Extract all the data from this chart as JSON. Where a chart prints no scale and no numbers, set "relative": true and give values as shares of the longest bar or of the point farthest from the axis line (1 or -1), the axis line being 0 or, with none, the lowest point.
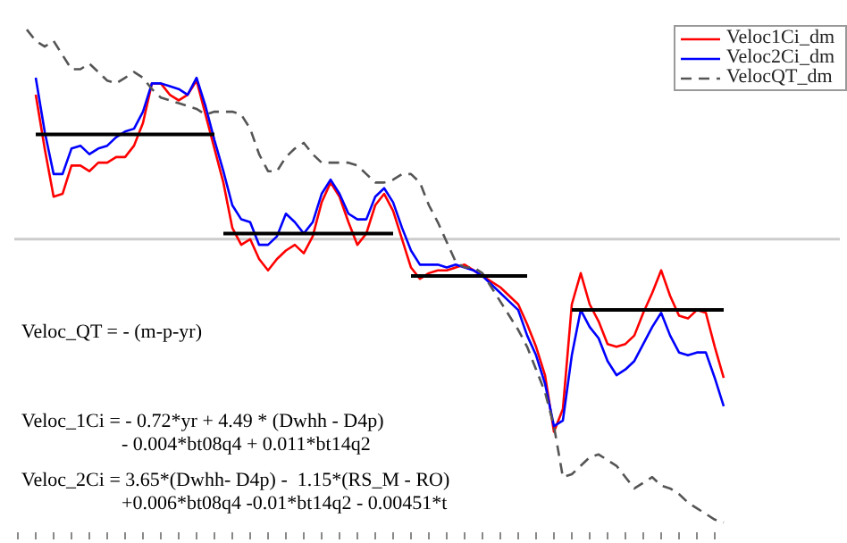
{
  "chart_data": {
    "type": "line",
    "relative": true,
    "legend": "top right",
    "grid": false,
    "categories": [
      null,
      null,
      null,
      null,
      null,
      null,
      null,
      null,
      null,
      null,
      null,
      null,
      null,
      null,
      null,
      null,
      null,
      null,
      null,
      null,
      null,
      null,
      null,
      null,
      null,
      null,
      null,
      null,
      null,
      null,
      null,
      null,
      null,
      null,
      null,
      null,
      null,
      null,
      null,
      null,
      null,
      null,
      null,
      null,
      null,
      null,
      null,
      null,
      null,
      null,
      null,
      null,
      null,
      null,
      null,
      null,
      null,
      null,
      null,
      null,
      null,
      null,
      null,
      null,
      null,
      null,
      null,
      null,
      null,
      null,
      null,
      null,
      null,
      null,
      null,
      null,
      null,
      null,
      null,
      null
    ],
    "series": [
      {
        "name": "Veloc1Ci_dm",
        "color": "#ff0000",
        "line_style": "solid",
        "values": [
          null,
          null,
          0.51,
          0.32,
          0.15,
          0.16,
          0.26,
          0.26,
          0.24,
          0.27,
          0.27,
          0.29,
          0.29,
          0.33,
          0.41,
          0.55,
          0.55,
          0.51,
          0.49,
          0.51,
          0.56,
          0.44,
          0.32,
          0.2,
          0.04,
          -0.02,
          0,
          -0.07,
          -0.11,
          -0.07,
          -0.04,
          -0.02,
          -0.05,
          0.01,
          0.13,
          0.2,
          0.15,
          0.06,
          -0.02,
          0.02,
          0.12,
          0.16,
          0.1,
          0,
          -0.1,
          -0.14,
          -0.12,
          -0.11,
          -0.11,
          -0.1,
          -0.09,
          -0.11,
          -0.13,
          -0.15,
          -0.17,
          -0.2,
          -0.23,
          -0.3,
          -0.38,
          -0.48,
          -0.68,
          -0.6,
          -0.23,
          -0.12,
          -0.23,
          -0.29,
          -0.37,
          -0.38,
          -0.37,
          -0.34,
          -0.26,
          -0.19,
          -0.11,
          -0.2,
          -0.27,
          -0.28,
          -0.25,
          -0.26,
          -0.38,
          -0.49
        ]
      },
      {
        "name": "Veloc2Ci_dm",
        "color": "#0000ff",
        "line_style": "solid",
        "values": [
          null,
          null,
          0.57,
          0.38,
          0.23,
          0.23,
          0.32,
          0.33,
          0.3,
          0.32,
          0.33,
          0.36,
          0.38,
          0.39,
          0.45,
          0.55,
          0.55,
          0.54,
          0.53,
          0.51,
          0.57,
          0.47,
          0.35,
          0.24,
          0.12,
          0.07,
          0.06,
          -0.02,
          -0.02,
          0.01,
          0.09,
          0.06,
          0.02,
          0.06,
          0.16,
          0.21,
          0.16,
          0.09,
          0.07,
          0.07,
          0.15,
          0.18,
          0.13,
          0.04,
          -0.04,
          -0.09,
          -0.09,
          -0.09,
          -0.1,
          -0.09,
          -0.1,
          -0.11,
          -0.13,
          -0.16,
          -0.19,
          -0.22,
          -0.25,
          -0.34,
          -0.41,
          -0.51,
          -0.66,
          -0.64,
          -0.41,
          -0.25,
          -0.31,
          -0.35,
          -0.43,
          -0.48,
          -0.46,
          -0.43,
          -0.37,
          -0.31,
          -0.26,
          -0.34,
          -0.4,
          -0.41,
          -0.4,
          -0.4,
          -0.49,
          -0.59
        ]
      },
      {
        "name": "VelocQT_dm",
        "color": "#555555",
        "line_style": "dashed",
        "values": [
          null,
          0.74,
          0.7,
          0.68,
          0.7,
          0.65,
          0.6,
          0.6,
          0.62,
          0.59,
          0.56,
          0.55,
          0.57,
          0.59,
          0.57,
          0.53,
          0.5,
          0.49,
          0.48,
          0.47,
          0.46,
          0.44,
          0.45,
          0.45,
          0.45,
          0.44,
          0.39,
          0.3,
          0.24,
          0.24,
          0.29,
          0.32,
          0.34,
          0.3,
          0.27,
          0.27,
          0.27,
          0.27,
          0.26,
          0.23,
          0.2,
          0.2,
          0.21,
          0.23,
          0.23,
          0.2,
          0.12,
          0.06,
          -0.01,
          -0.08,
          -0.1,
          -0.1,
          -0.12,
          -0.17,
          -0.22,
          -0.27,
          -0.32,
          -0.38,
          -0.46,
          -0.54,
          -0.66,
          -0.84,
          -0.83,
          -0.8,
          -0.77,
          -0.76,
          -0.78,
          -0.8,
          -0.84,
          -0.88,
          -0.86,
          -0.84,
          -0.87,
          -0.88,
          -0.9,
          -0.93,
          -0.95,
          -0.97,
          -0.99,
          -1
        ]
      },
      {
        "color": "#000000",
        "line_style": "solid",
        "values": [
          null,
          null,
          0.37,
          null,
          null,
          null,
          null,
          null,
          null,
          null,
          null,
          null,
          null,
          null,
          null,
          null,
          null,
          null,
          null,
          null,
          null,
          null,
          0.37,
          null,
          null,
          null,
          null,
          null,
          null,
          null,
          null,
          null,
          null,
          null,
          null,
          null,
          null,
          null,
          null,
          null,
          null,
          null,
          null,
          null,
          null,
          null,
          null,
          null,
          null,
          null,
          null,
          null,
          null,
          null,
          null,
          null,
          null,
          null,
          null,
          null,
          null,
          null,
          null,
          null,
          null,
          null,
          null,
          null,
          null,
          null,
          null,
          null,
          null,
          null,
          null,
          null,
          null,
          null,
          null,
          null
        ]
      },
      {
        "color": "#000000",
        "line_style": "solid",
        "values": [
          null,
          null,
          null,
          null,
          null,
          null,
          null,
          null,
          null,
          null,
          null,
          null,
          null,
          null,
          null,
          null,
          null,
          null,
          null,
          null,
          null,
          null,
          null,
          0.02,
          null,
          null,
          null,
          null,
          null,
          null,
          null,
          null,
          null,
          null,
          null,
          null,
          null,
          null,
          null,
          null,
          null,
          null,
          0.02,
          null,
          null,
          null,
          null,
          null,
          null,
          null,
          null,
          null,
          null,
          null,
          null,
          null,
          null,
          null,
          null,
          null,
          null,
          null,
          null,
          null,
          null,
          null,
          null,
          null,
          null,
          null,
          null,
          null,
          null,
          null,
          null,
          null,
          null,
          null,
          null,
          null
        ]
      },
      {
        "color": "#000000",
        "line_style": "solid",
        "values": [
          null,
          null,
          null,
          null,
          null,
          null,
          null,
          null,
          null,
          null,
          null,
          null,
          null,
          null,
          null,
          null,
          null,
          null,
          null,
          null,
          null,
          null,
          null,
          null,
          null,
          null,
          null,
          null,
          null,
          null,
          null,
          null,
          null,
          null,
          null,
          null,
          null,
          null,
          null,
          null,
          null,
          null,
          null,
          null,
          -0.13,
          null,
          null,
          null,
          null,
          null,
          null,
          null,
          null,
          null,
          null,
          null,
          null,
          -0.13,
          null,
          null,
          null,
          null,
          null,
          null,
          null,
          null,
          null,
          null,
          null,
          null,
          null,
          null,
          null,
          null,
          null,
          null,
          null,
          null,
          null,
          null
        ]
      },
      {
        "color": "#000000",
        "line_style": "solid",
        "values": [
          null,
          null,
          null,
          null,
          null,
          null,
          null,
          null,
          null,
          null,
          null,
          null,
          null,
          null,
          null,
          null,
          null,
          null,
          null,
          null,
          null,
          null,
          null,
          null,
          null,
          null,
          null,
          null,
          null,
          null,
          null,
          null,
          null,
          null,
          null,
          null,
          null,
          null,
          null,
          null,
          null,
          null,
          null,
          null,
          null,
          null,
          null,
          null,
          null,
          null,
          null,
          null,
          null,
          null,
          null,
          null,
          null,
          null,
          null,
          null,
          null,
          null,
          -0.25,
          null,
          null,
          null,
          null,
          null,
          null,
          null,
          null,
          null,
          null,
          null,
          null,
          null,
          null,
          null,
          null,
          -0.25
        ]
      }
    ],
    "ref_lines": [
      {
        "axis": "y",
        "value": 0,
        "color": "#cccccc"
      }
    ],
    "annotations": [
      "Veloc_QT = - (m-p-yr)",
      "Veloc_1Ci = - 0.72*yr + 4.49 * (Dwhh - D4p)\n- 0.004*bt08q4 + 0.011*bt14q2",
      "Veloc_2Ci = 3.65*(Dwhh- D4p) -  1.15*(RS_M - RO)\n+0.006*bt08q4 -0.01*bt14q2 - 0.00451*t"
    ]
  }
}
